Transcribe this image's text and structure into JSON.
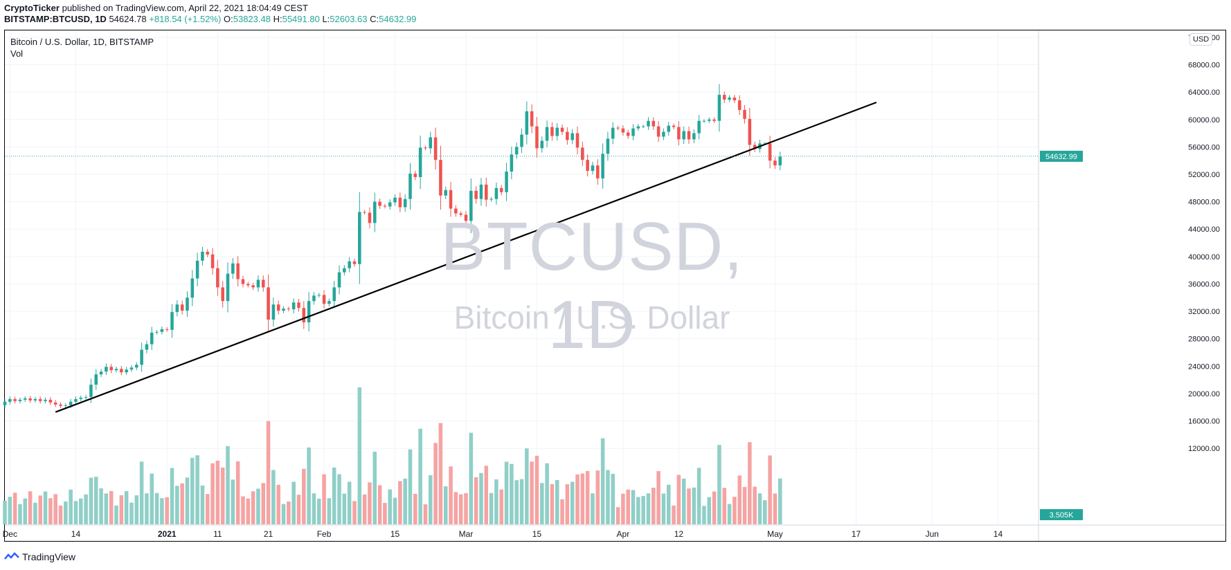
{
  "header": {
    "publisher": "CryptoTicker",
    "published_text": "published on TradingView.com, April 22, 2021 18:04:49 CEST",
    "symbol": "BITSTAMP:BTCUSD, 1D",
    "last": "54624.78",
    "change": "+818.54 (+1.52%)",
    "o_label": "O:",
    "o_value": "53823.48",
    "h_label": "H:",
    "h_value": "55491.80",
    "l_label": "L:",
    "l_value": "52603.63",
    "c_label": "C:",
    "c_value": "54632.99"
  },
  "legend": {
    "title": "Bitcoin / U.S. Dollar, 1D, BITSTAMP",
    "vol": "Vol"
  },
  "watermark": {
    "line1": "BTCUSD, 1D",
    "line2": "Bitcoin / U.S. Dollar"
  },
  "currency_badge": "USD",
  "footer": {
    "brand": "TradingView"
  },
  "colors": {
    "up": "#26a69a",
    "down": "#ef5350",
    "up_vol": "#8fcfc7",
    "down_vol": "#f5a3a3",
    "price_line": "#26a69a",
    "trendline": "#000000"
  },
  "chart_data": {
    "type": "candlestick",
    "symbol": "BTCUSD",
    "y_ticks": [
      12000,
      16000,
      20000,
      24000,
      28000,
      32000,
      36000,
      40000,
      44000,
      48000,
      52000,
      56000,
      60000,
      64000,
      68000,
      72000
    ],
    "y_tick_labels": [
      "12000.00",
      "16000.00",
      "20000.00",
      "24000.00",
      "28000.00",
      "32000.00",
      "36000.00",
      "40000.00",
      "44000.00",
      "48000.00",
      "52000.00",
      "56000.00",
      "60000.00",
      "64000.00",
      "68000.00",
      "72000.00"
    ],
    "ylim": [
      10000,
      73000
    ],
    "x_ticks": [
      {
        "date": "2020-12-01",
        "label": "Dec"
      },
      {
        "date": "2020-12-14",
        "label": "14"
      },
      {
        "date": "2021-01-01",
        "label": "2021"
      },
      {
        "date": "2021-01-11",
        "label": "11"
      },
      {
        "date": "2021-01-21",
        "label": "21"
      },
      {
        "date": "2021-02-01",
        "label": "Feb"
      },
      {
        "date": "2021-02-15",
        "label": "15"
      },
      {
        "date": "2021-03-01",
        "label": "Mar"
      },
      {
        "date": "2021-03-15",
        "label": "15"
      },
      {
        "date": "2021-04-01",
        "label": "Apr"
      },
      {
        "date": "2021-04-12",
        "label": "12"
      },
      {
        "date": "2021-05-01",
        "label": "May"
      },
      {
        "date": "2021-05-17",
        "label": "17"
      },
      {
        "date": "2021-06-01",
        "label": "Jun"
      },
      {
        "date": "2021-06-14",
        "label": "14"
      }
    ],
    "x_range": [
      "2020-11-30",
      "2021-06-22"
    ],
    "start_date": "2020-11-30",
    "candles_close": [
      18800,
      19200,
      18900,
      19100,
      19300,
      19000,
      19200,
      18900,
      19100,
      18700,
      18400,
      18200,
      18300,
      18800,
      19200,
      19400,
      19500,
      21300,
      22800,
      23200,
      23900,
      23400,
      23600,
      23100,
      23500,
      23800,
      24200,
      26400,
      27200,
      28900,
      29000,
      29400,
      29300,
      31900,
      33000,
      32100,
      34000,
      36800,
      39400,
      40700,
      40300,
      38300,
      35500,
      33500,
      37500,
      39000,
      36700,
      36000,
      35800,
      35500,
      36600,
      35500,
      30800,
      33000,
      32100,
      32400,
      32300,
      33300,
      32500,
      30400,
      33500,
      34300,
      34400,
      33100,
      33500,
      35500,
      37700,
      38300,
      39300,
      38900,
      46500,
      46400,
      44900,
      48000,
      47400,
      47300,
      47900,
      48600,
      47200,
      48400,
      52100,
      51600,
      55900,
      55800,
      57400,
      54100,
      48900,
      49700,
      47000,
      46300,
      46100,
      45200,
      49600,
      48400,
      50500,
      48300,
      48400,
      50000,
      49400,
      52400,
      54900,
      56000,
      57800,
      61200,
      59000,
      55800,
      56900,
      58900,
      57600,
      58800,
      58200,
      57000,
      58000,
      55900,
      54100,
      52500,
      53300,
      51400,
      55000,
      57200,
      58800,
      58700,
      58100,
      57600,
      58700,
      59000,
      59000,
      59800,
      59000,
      57500,
      58200,
      59100,
      58900,
      57100,
      58300,
      57100,
      58000,
      59800,
      59800,
      60000,
      59800,
      63600,
      62900,
      63200,
      62800,
      61400,
      60100,
      56300,
      55700,
      56500,
      56500,
      54000,
      53300,
      54600
    ],
    "candles_start_open": 18300,
    "volume_scale_max": 17500,
    "volume_last_label": "3.505K",
    "last_price_label": "54632.99",
    "trendline": [
      {
        "date": "2020-12-10",
        "price": 17300
      },
      {
        "date": "2021-05-21",
        "price": 62500
      }
    ]
  }
}
